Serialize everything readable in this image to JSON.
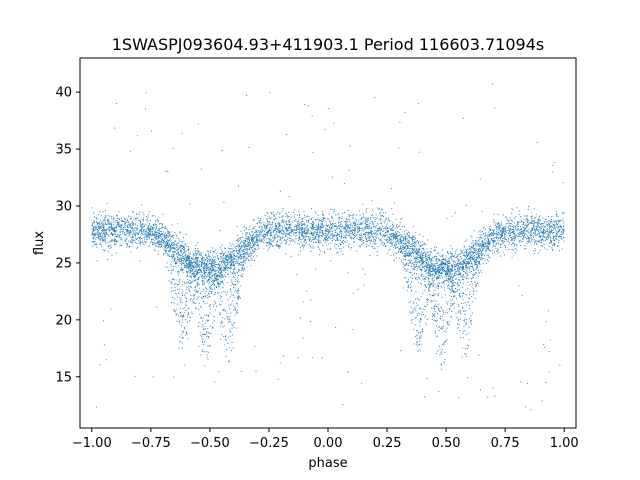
{
  "chart_data": {
    "type": "scatter",
    "title": "1SWASPJ093604.93+411903.1 Period 116603.71094s",
    "xlabel": "phase",
    "ylabel": "flux",
    "xlim": [
      -1.05,
      1.05
    ],
    "ylim": [
      10.5,
      43.0
    ],
    "xticks": [
      -1.0,
      -0.75,
      -0.5,
      -0.25,
      0.0,
      0.25,
      0.5,
      0.75,
      1.0
    ],
    "xtick_labels": [
      "−1.00",
      "−0.75",
      "−0.50",
      "−0.25",
      "0.00",
      "0.25",
      "0.50",
      "0.75",
      "1.00"
    ],
    "yticks": [
      15,
      20,
      25,
      30,
      35,
      40
    ],
    "ytick_labels": [
      "15",
      "20",
      "25",
      "30",
      "35",
      "40"
    ],
    "grid": false,
    "legend": "none",
    "marker_color": "#1f77b4",
    "series_description": "Folded light curve; baseline flux ~28 at phase 0 and ±1, broad dip to ~24.5 near phase ±0.5 with lower scattered branches reaching ~16.5",
    "series": [
      {
        "values_x": [
          -1.0,
          -0.95,
          -0.9,
          -0.85,
          -0.8,
          -0.75,
          -0.7,
          -0.65,
          -0.6,
          -0.55,
          -0.5,
          -0.45,
          -0.4,
          -0.35,
          -0.3,
          -0.25,
          -0.2,
          -0.15,
          -0.1,
          -0.05,
          0.0,
          0.05,
          0.1,
          0.15,
          0.2,
          0.25,
          0.3,
          0.35,
          0.4,
          0.45,
          0.5,
          0.55,
          0.6,
          0.65,
          0.7,
          0.75,
          0.8,
          0.85,
          0.9,
          0.95,
          1.0
        ],
        "values_y": [
          27.8,
          27.9,
          27.5,
          27.0,
          26.8,
          26.5,
          25.8,
          25.2,
          24.8,
          24.6,
          24.7,
          24.8,
          25.0,
          25.8,
          26.6,
          27.3,
          27.6,
          27.8,
          28.0,
          27.9,
          27.8,
          27.7,
          27.4,
          27.1,
          26.8,
          26.5,
          25.8,
          25.2,
          24.8,
          24.6,
          24.7,
          24.8,
          25.0,
          25.8,
          26.6,
          27.3,
          27.6,
          27.8,
          28.0,
          27.9,
          27.8
        ]
      }
    ]
  }
}
